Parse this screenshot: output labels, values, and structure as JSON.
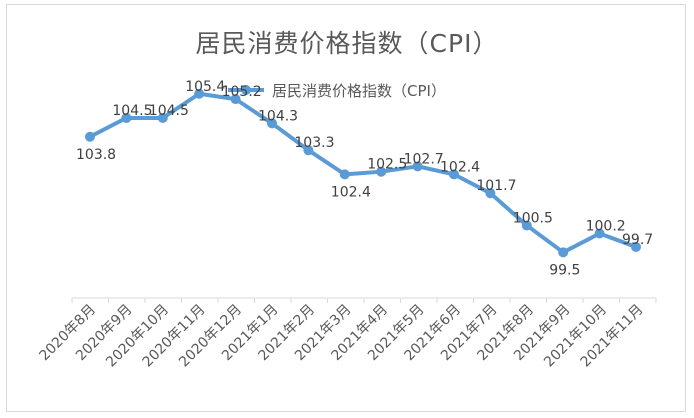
{
  "chart_data": {
    "type": "line",
    "title": "居民消费价格指数（CPI）",
    "xlabel": "",
    "ylabel": "",
    "categories": [
      "2020年8月",
      "2020年9月",
      "2020年10月",
      "2020年11月",
      "2020年12月",
      "2021年1月",
      "2021年2月",
      "2021年3月",
      "2021年4月",
      "2021年5月",
      "2021年6月",
      "2021年7月",
      "2021年8月",
      "2021年9月",
      "2021年10月",
      "2021年11月"
    ],
    "series": [
      {
        "name": "居民消费价格指数（CPI）",
        "color": "#5b9bd5",
        "values": [
          103.8,
          104.5,
          104.5,
          105.4,
          105.2,
          104.3,
          103.3,
          102.4,
          102.5,
          102.7,
          102.4,
          101.7,
          100.5,
          99.5,
          100.2,
          99.7
        ]
      }
    ],
    "data_labels": [
      "103.8",
      "104.5",
      "104.5",
      "105.4",
      "105.2",
      "104.3",
      "103.3",
      "102.4",
      "102.5",
      "102.7",
      "102.4",
      "101.7",
      "100.5",
      "99.5",
      "100.2",
      "99.7"
    ],
    "ylim": [
      97.8,
      107.4
    ],
    "y_axis_visible": false,
    "grid": false,
    "legend_position": "top"
  }
}
